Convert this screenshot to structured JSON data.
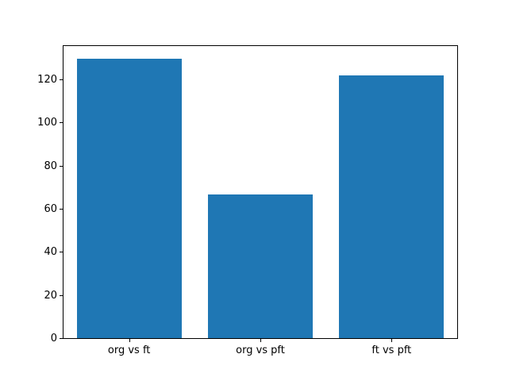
{
  "chart_data": {
    "type": "bar",
    "categories": [
      "org vs ft",
      "org vs pft",
      "ft vs pft"
    ],
    "values": [
      129.6,
      66.8,
      121.7
    ],
    "title": "",
    "xlabel": "",
    "ylabel": "",
    "ylim": [
      0,
      135.5
    ],
    "xlim": [
      -0.5,
      2.5
    ],
    "yticks": [
      0,
      20,
      40,
      60,
      80,
      100,
      120
    ],
    "bar_width": 0.8,
    "bar_color": "#1f77b4",
    "grid": false,
    "legend": null
  },
  "figure": {
    "background": "#ffffff",
    "axes_edge_color": "#000000",
    "tick_label_color": "#000000"
  }
}
